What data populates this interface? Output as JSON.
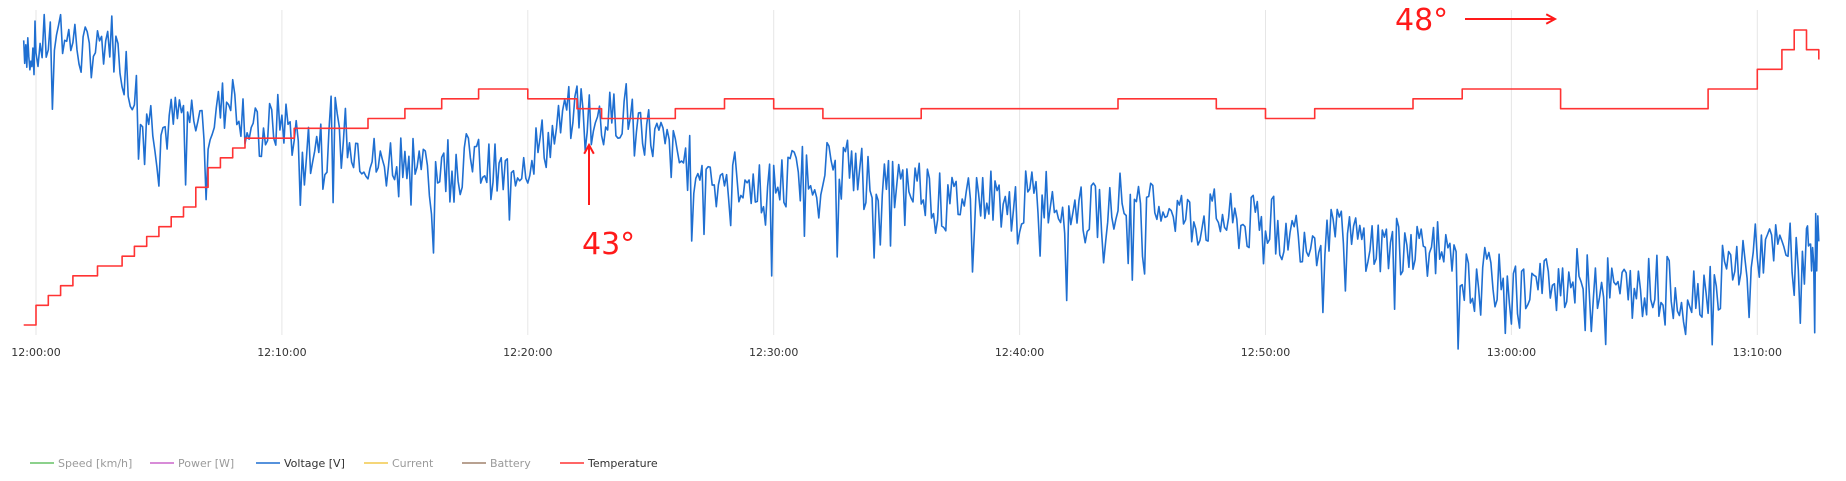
{
  "chart_data": {
    "type": "line",
    "x_labels": [
      "12:00:00",
      "12:10:00",
      "12:20:00",
      "12:30:00",
      "12:40:00",
      "12:50:00",
      "13:00:00",
      "13:10:00"
    ],
    "x_range_minutes": [
      -0.5,
      72.5
    ],
    "grid": "vertical",
    "legend_position": "bottom-left",
    "series": [
      {
        "name": "Speed [km/h]",
        "color": "#66c266",
        "visible": false,
        "values": []
      },
      {
        "name": "Power [W]",
        "color": "#cc66cc",
        "visible": false,
        "values": []
      },
      {
        "name": "Voltage [V]",
        "color": "#1f6fd1",
        "visible": true,
        "points": [
          [
            -0.5,
            47.0
          ],
          [
            0,
            46.0
          ],
          [
            1,
            48.0
          ],
          [
            2,
            45.5
          ],
          [
            3,
            47.5
          ],
          [
            4,
            42.0
          ],
          [
            5,
            37.5
          ],
          [
            6,
            39.5
          ],
          [
            7,
            38.5
          ],
          [
            8,
            41.5
          ],
          [
            9,
            37.0
          ],
          [
            10,
            39.0
          ],
          [
            11,
            36.0
          ],
          [
            12,
            38.5
          ],
          [
            13,
            36.5
          ],
          [
            14,
            34.0
          ],
          [
            15,
            36.0
          ],
          [
            16,
            33.5
          ],
          [
            17,
            35.0
          ],
          [
            18,
            34.5
          ],
          [
            19,
            33.0
          ],
          [
            20,
            35.5
          ],
          [
            21,
            37.0
          ],
          [
            22,
            40.5
          ],
          [
            23,
            38.5
          ],
          [
            24,
            40.0
          ],
          [
            25,
            37.5
          ],
          [
            26,
            35.0
          ],
          [
            27,
            34.0
          ],
          [
            28,
            33.5
          ],
          [
            29,
            32.5
          ],
          [
            30,
            32.0
          ],
          [
            31,
            33.5
          ],
          [
            32,
            34.0
          ],
          [
            33,
            34.5
          ],
          [
            34,
            33.0
          ],
          [
            35,
            32.0
          ],
          [
            36,
            32.5
          ],
          [
            37,
            30.0
          ],
          [
            38,
            31.5
          ],
          [
            39,
            31.0
          ],
          [
            40,
            30.5
          ],
          [
            41,
            31.5
          ],
          [
            42,
            30.0
          ],
          [
            43,
            29.5
          ],
          [
            44,
            31.0
          ],
          [
            45,
            29.0
          ],
          [
            46,
            30.5
          ],
          [
            47,
            28.5
          ],
          [
            48,
            29.0
          ],
          [
            49,
            28.0
          ],
          [
            50,
            28.5
          ],
          [
            51,
            27.5
          ],
          [
            52,
            27.0
          ],
          [
            53,
            27.0
          ],
          [
            54,
            26.5
          ],
          [
            55,
            26.0
          ],
          [
            56,
            26.5
          ],
          [
            57,
            25.5
          ],
          [
            58,
            22.5
          ],
          [
            59,
            23.0
          ],
          [
            60,
            21.5
          ],
          [
            61,
            22.0
          ],
          [
            62,
            22.5
          ],
          [
            63,
            23.0
          ],
          [
            64,
            22.0
          ],
          [
            65,
            21.5
          ],
          [
            66,
            22.5
          ],
          [
            67,
            21.0
          ],
          [
            68,
            22.0
          ],
          [
            69,
            24.0
          ],
          [
            70,
            25.5
          ],
          [
            71,
            25.5
          ],
          [
            72,
            26.0
          ],
          [
            72.5,
            26.5
          ]
        ]
      },
      {
        "name": "Current",
        "color": "#f2c94c",
        "visible": false,
        "values": []
      },
      {
        "name": "Battery",
        "color": "#a0826d",
        "visible": false,
        "values": []
      },
      {
        "name": "Temperature",
        "color": "#ff3333",
        "visible": true,
        "points": [
          [
            -0.5,
            33.0
          ],
          [
            0,
            34.0
          ],
          [
            0.5,
            34.5
          ],
          [
            1,
            35.0
          ],
          [
            1.5,
            35.5
          ],
          [
            2.5,
            36.0
          ],
          [
            3.5,
            36.5
          ],
          [
            4,
            37.0
          ],
          [
            4.5,
            37.5
          ],
          [
            5,
            38.0
          ],
          [
            5.5,
            38.5
          ],
          [
            6,
            39.0
          ],
          [
            6.5,
            40.0
          ],
          [
            7,
            41.0
          ],
          [
            7.5,
            41.5
          ],
          [
            8,
            42.0
          ],
          [
            8.5,
            42.5
          ],
          [
            9.5,
            42.5
          ],
          [
            10.5,
            43.0
          ],
          [
            13.5,
            43.5
          ],
          [
            15,
            44.0
          ],
          [
            16.5,
            44.5
          ],
          [
            18,
            45.0
          ],
          [
            20,
            44.5
          ],
          [
            22,
            44.0
          ],
          [
            23,
            43.5
          ],
          [
            25,
            43.5
          ],
          [
            26,
            44.0
          ],
          [
            28,
            44.5
          ],
          [
            30,
            44.0
          ],
          [
            32,
            43.5
          ],
          [
            34,
            43.5
          ],
          [
            36,
            44.0
          ],
          [
            38,
            44.0
          ],
          [
            40,
            44.0
          ],
          [
            42,
            44.0
          ],
          [
            44,
            44.5
          ],
          [
            46,
            44.5
          ],
          [
            48,
            44.0
          ],
          [
            50,
            43.5
          ],
          [
            52,
            44.0
          ],
          [
            54,
            44.0
          ],
          [
            56,
            44.5
          ],
          [
            58,
            45.0
          ],
          [
            60,
            45.0
          ],
          [
            62,
            44.0
          ],
          [
            64,
            44.0
          ],
          [
            66,
            44.0
          ],
          [
            68,
            45.0
          ],
          [
            70,
            46.0
          ],
          [
            71,
            47.0
          ],
          [
            71.5,
            48.0
          ],
          [
            72,
            47.0
          ],
          [
            72.5,
            46.5
          ]
        ]
      }
    ],
    "annotations": [
      {
        "text": "48°",
        "color": "#ff1a1a",
        "points_to": "Temperature"
      },
      {
        "text": "43°",
        "color": "#ff1a1a",
        "points_to": "Temperature"
      }
    ]
  }
}
